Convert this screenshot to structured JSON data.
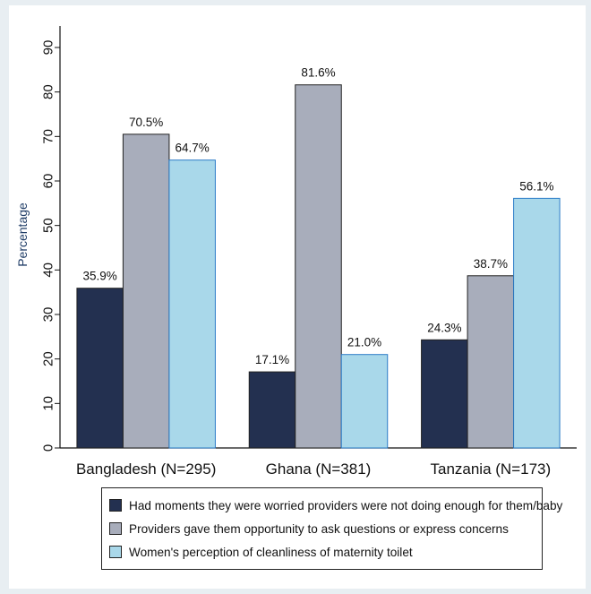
{
  "chart_data": {
    "type": "bar",
    "title": "",
    "xlabel": "",
    "ylabel": "Percentage",
    "ylim": [
      0,
      90
    ],
    "yticks": [
      0,
      10,
      20,
      30,
      40,
      50,
      60,
      70,
      80,
      90
    ],
    "grid": false,
    "legend_position": "bottom",
    "categories": [
      "Bangladesh (N=295)",
      "Ghana (N=381)",
      "Tanzania (N=173)"
    ],
    "series": [
      {
        "name": "Had moments they were worried providers were not doing enough for them/baby",
        "color": "#233050",
        "values": [
          35.9,
          17.1,
          24.3
        ],
        "labels": [
          "35.9%",
          "17.1%",
          "24.3%"
        ]
      },
      {
        "name": "Providers gave them opportunity to ask questions or express concerns",
        "color": "#a8adbb",
        "values": [
          70.5,
          81.6,
          38.7
        ],
        "labels": [
          "70.5%",
          "81.6%",
          "38.7%"
        ]
      },
      {
        "name": "Women's perception of cleanliness of maternity toilet",
        "color": "#a9d8ea",
        "values": [
          64.7,
          21.0,
          56.1
        ],
        "labels": [
          "64.7%",
          "21.0%",
          "56.1%"
        ]
      }
    ]
  }
}
